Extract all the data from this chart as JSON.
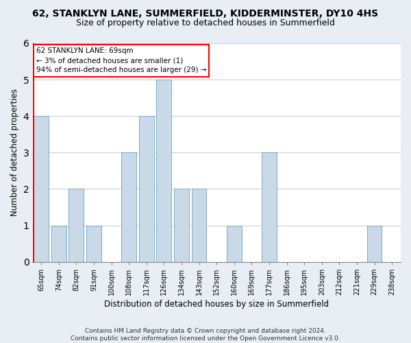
{
  "title1": "62, STANKLYN LANE, SUMMERFIELD, KIDDERMINSTER, DY10 4HS",
  "title2": "Size of property relative to detached houses in Summerfield",
  "xlabel": "Distribution of detached houses by size in Summerfield",
  "ylabel": "Number of detached properties",
  "categories": [
    "65sqm",
    "74sqm",
    "82sqm",
    "91sqm",
    "100sqm",
    "108sqm",
    "117sqm",
    "126sqm",
    "134sqm",
    "143sqm",
    "152sqm",
    "160sqm",
    "169sqm",
    "177sqm",
    "186sqm",
    "195sqm",
    "203sqm",
    "212sqm",
    "221sqm",
    "229sqm",
    "238sqm"
  ],
  "values": [
    4,
    1,
    2,
    1,
    0,
    3,
    4,
    5,
    2,
    2,
    0,
    1,
    0,
    3,
    0,
    0,
    0,
    0,
    0,
    1,
    0
  ],
  "bar_color": "#c9d9e8",
  "bar_edge_color": "#7aaac8",
  "property_line_label": "62 STANKLYN LANE: 69sqm",
  "annotation_line1": "← 3% of detached houses are smaller (1)",
  "annotation_line2": "94% of semi-detached houses are larger (29) →",
  "annotation_box_color": "white",
  "annotation_box_edge": "red",
  "vline_color": "red",
  "ylim": [
    0,
    6
  ],
  "yticks": [
    0,
    1,
    2,
    3,
    4,
    5,
    6
  ],
  "footer1": "Contains HM Land Registry data © Crown copyright and database right 2024.",
  "footer2": "Contains public sector information licensed under the Open Government Licence v3.0.",
  "background_color": "#e8eef4",
  "plot_bg_color": "white",
  "title1_fontsize": 10,
  "title2_fontsize": 9,
  "ylabel_fontsize": 8.5,
  "xlabel_fontsize": 8.5,
  "tick_fontsize": 7,
  "annotation_fontsize": 7.5,
  "footer_fontsize": 6.5
}
